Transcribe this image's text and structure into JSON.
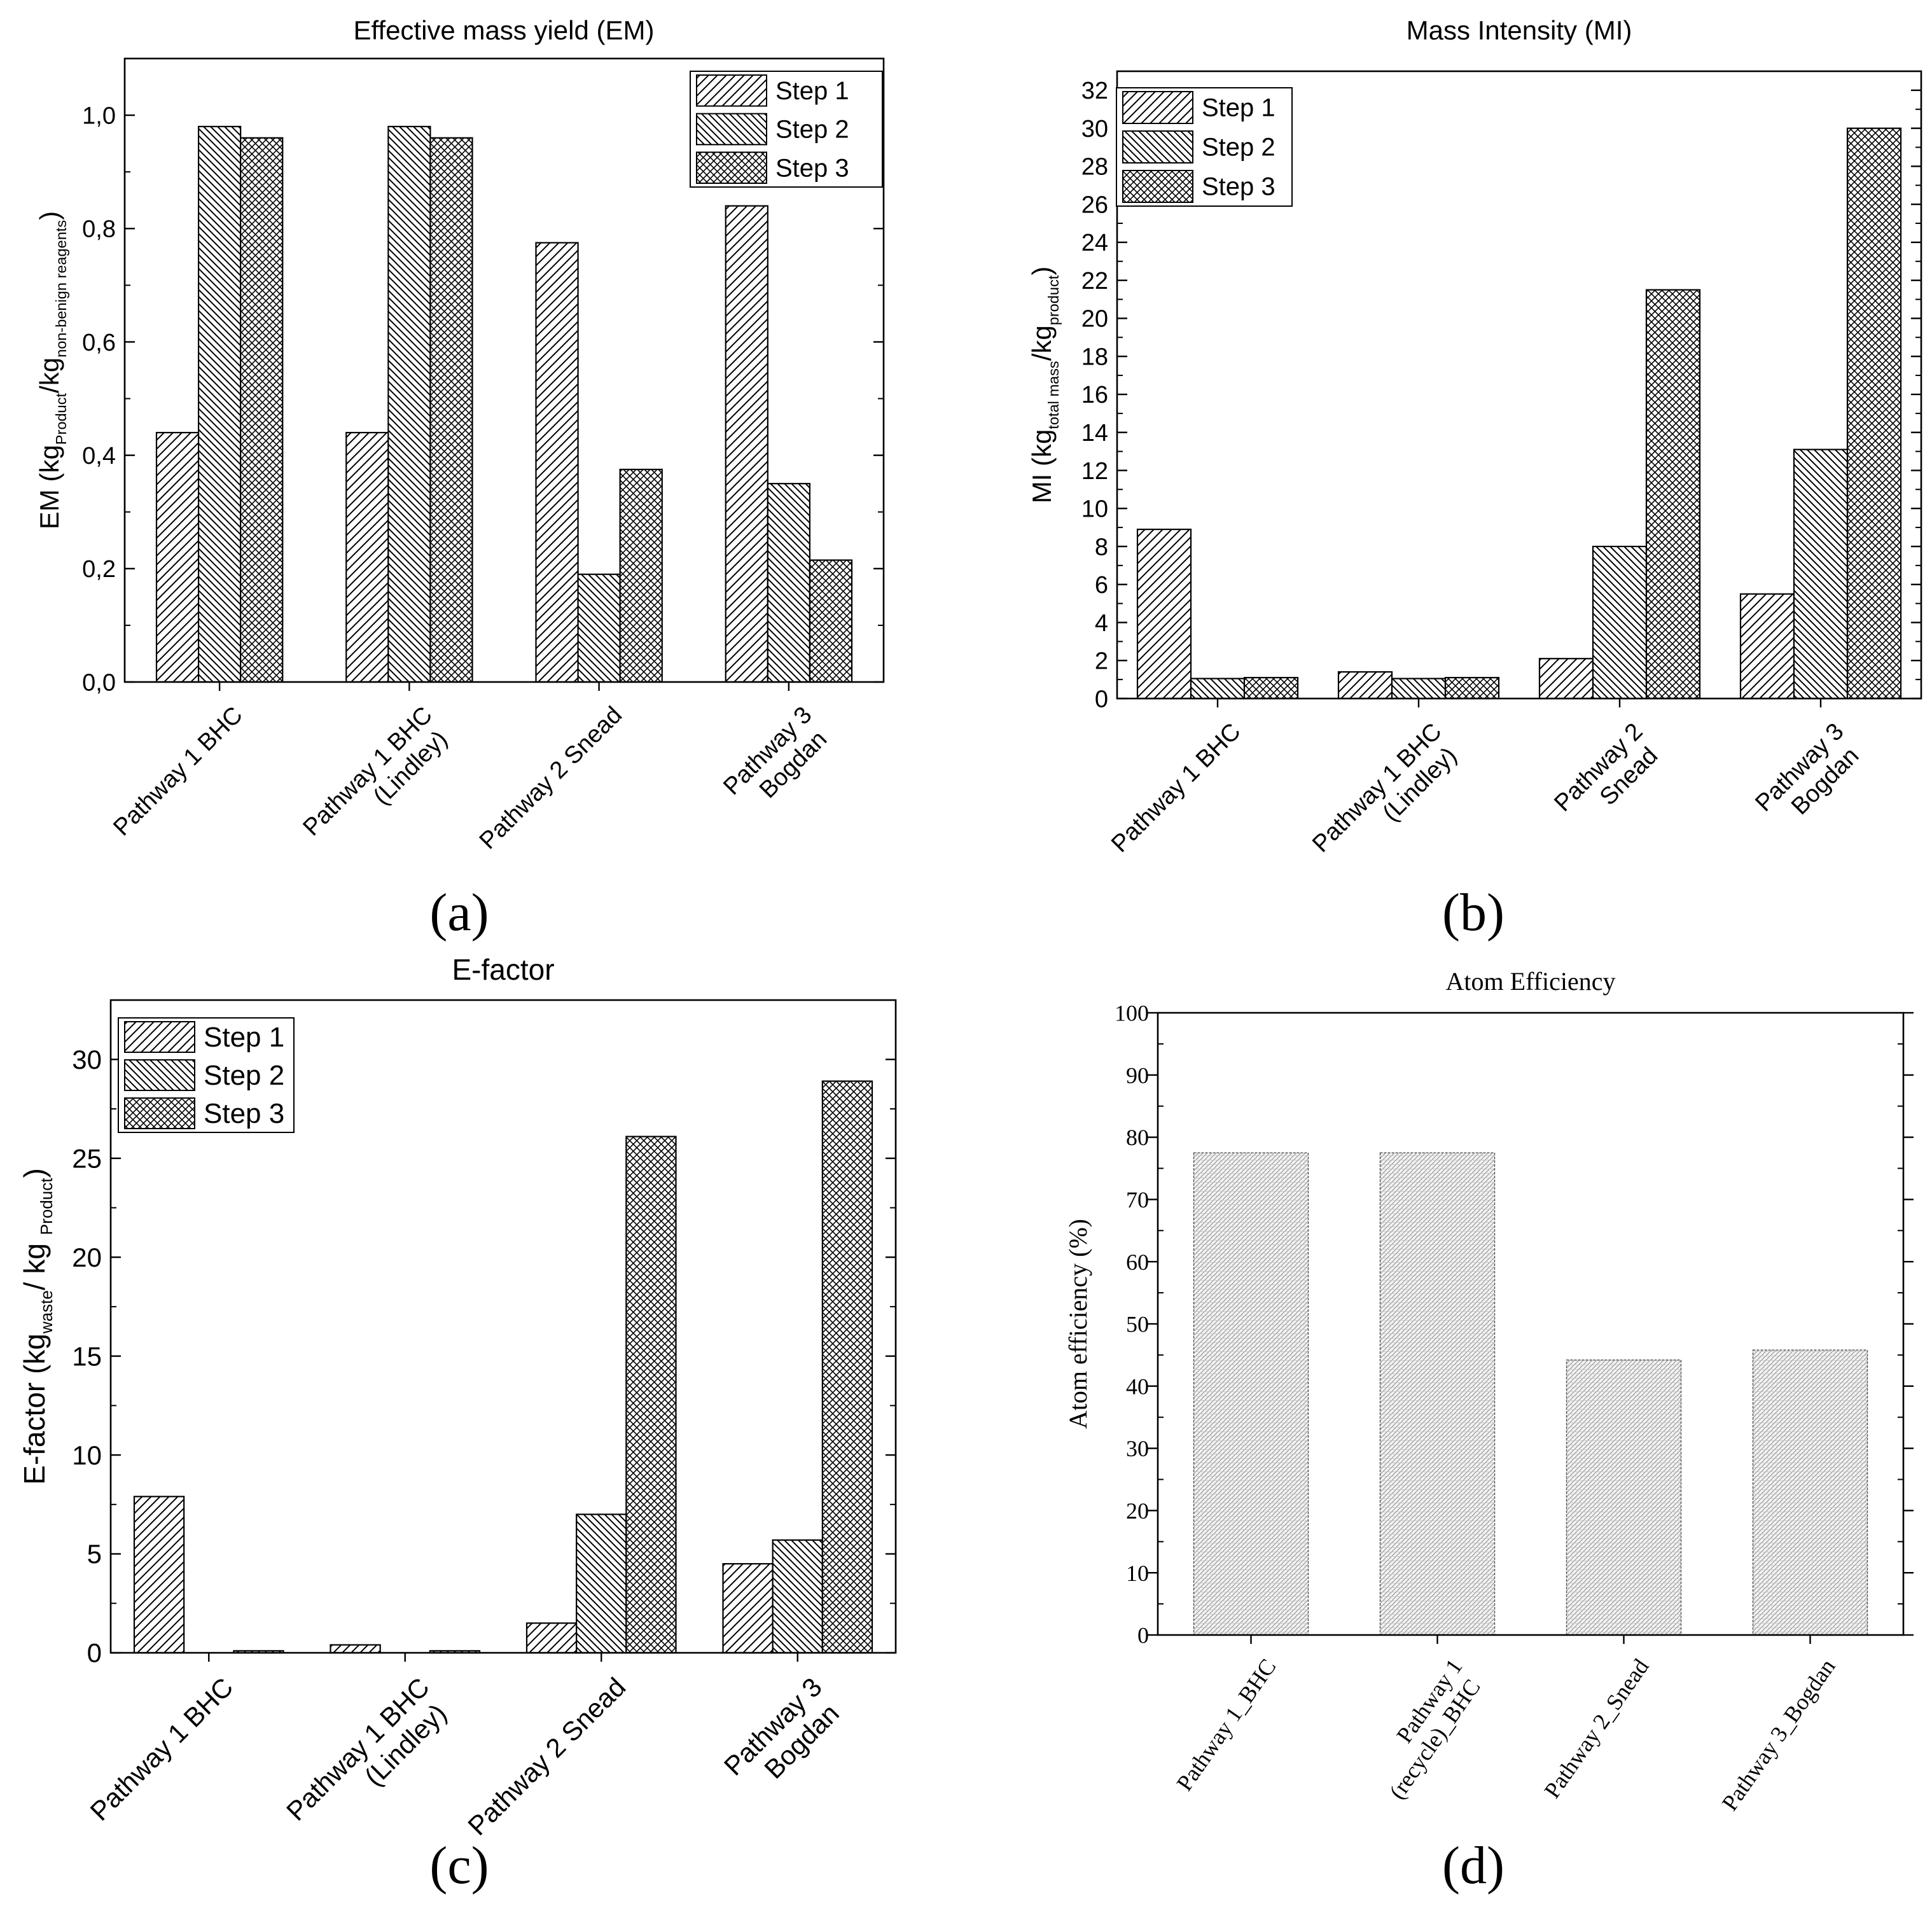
{
  "panels": {
    "a": "(a)",
    "b": "(b)",
    "c": "(c)",
    "d": "(d)"
  },
  "chart_data": [
    {
      "id": "a",
      "type": "bar",
      "title": "Effective mass yield (EM)",
      "ylabel_parts": [
        "EM (kg",
        "Product",
        "/kg",
        "non-benign reagents",
        ")"
      ],
      "ylim": [
        0,
        1.1
      ],
      "yticks": [
        0,
        0.2,
        0.4,
        0.6,
        0.8,
        1.0
      ],
      "ytick_labels": [
        "0,0",
        "0,2",
        "0,4",
        "0,6",
        "0,8",
        "1,0"
      ],
      "categories": [
        [
          "Pathway 1 BHC"
        ],
        [
          "Pathway 1 BHC",
          "(Lindley)"
        ],
        [
          "Pathway 2 Snead"
        ],
        [
          "Pathway 3",
          "Bogdan"
        ]
      ],
      "series": [
        {
          "name": "Step 1",
          "values": [
            0.44,
            0.44,
            0.775,
            0.84
          ]
        },
        {
          "name": "Step 2",
          "values": [
            0.98,
            0.98,
            0.19,
            0.35
          ]
        },
        {
          "name": "Step 3",
          "values": [
            0.96,
            0.96,
            0.375,
            0.215
          ]
        }
      ],
      "legend": "top-right"
    },
    {
      "id": "b",
      "type": "bar",
      "title": "Mass Intensity (MI)",
      "ylabel_parts": [
        "MI (kg",
        "total mass",
        "/kg",
        "product",
        ")"
      ],
      "ylim": [
        0,
        33
      ],
      "yticks": [
        0,
        2,
        4,
        6,
        8,
        10,
        12,
        14,
        16,
        18,
        20,
        22,
        24,
        26,
        28,
        30,
        32
      ],
      "ytick_labels": [
        "0",
        "2",
        "4",
        "6",
        "8",
        "10",
        "12",
        "14",
        "16",
        "18",
        "20",
        "22",
        "24",
        "26",
        "28",
        "30",
        "32"
      ],
      "categories": [
        [
          "Pathway 1 BHC"
        ],
        [
          "Pathway 1 BHC",
          "(Lindley)"
        ],
        [
          "Pathway 2",
          "Snead"
        ],
        [
          "Pathway 3",
          "Bogdan"
        ]
      ],
      "series": [
        {
          "name": "Step 1",
          "values": [
            8.9,
            1.4,
            2.1,
            5.5
          ]
        },
        {
          "name": "Step 2",
          "values": [
            1.05,
            1.05,
            8.0,
            13.1
          ]
        },
        {
          "name": "Step 3",
          "values": [
            1.1,
            1.1,
            21.5,
            30.0
          ]
        }
      ],
      "legend": "top-left"
    },
    {
      "id": "c",
      "type": "bar",
      "title": "E-factor",
      "ylabel_parts": [
        "E-factor (kg",
        "waste",
        "/ kg ",
        "Product",
        ")"
      ],
      "ylim": [
        0,
        33
      ],
      "yticks": [
        0,
        5,
        10,
        15,
        20,
        25,
        30
      ],
      "ytick_labels": [
        "0",
        "5",
        "10",
        "15",
        "20",
        "25",
        "30"
      ],
      "categories": [
        [
          "Pathway 1 BHC"
        ],
        [
          "Pathway 1 BHC",
          "(Lindley)"
        ],
        [
          "Pathway 2 Snead"
        ],
        [
          "Pathway 3",
          "Bogdan"
        ]
      ],
      "series": [
        {
          "name": "Step 1",
          "values": [
            7.9,
            0.4,
            1.5,
            4.5
          ]
        },
        {
          "name": "Step 2",
          "values": [
            0.0,
            0.0,
            7.0,
            5.7
          ]
        },
        {
          "name": "Step 3",
          "values": [
            0.1,
            0.1,
            26.1,
            28.9
          ]
        }
      ],
      "legend": "top-left"
    },
    {
      "id": "d",
      "type": "bar",
      "title": "Atom Efficiency",
      "ylabel_parts": [
        "Atom efficiency (%)"
      ],
      "ylim": [
        0,
        100
      ],
      "yticks": [
        0,
        10,
        20,
        30,
        40,
        50,
        60,
        70,
        80,
        90,
        100
      ],
      "ytick_labels": [
        "0",
        "10",
        "20",
        "30",
        "40",
        "50",
        "60",
        "70",
        "80",
        "90",
        "100"
      ],
      "categories": [
        [
          "Pathway 1_BHC"
        ],
        [
          "Pathway 1",
          "(recycle)_BHC"
        ],
        [
          "Pathway 2_Snead"
        ],
        [
          "Pathway 3_Bogdan"
        ]
      ],
      "series": [
        {
          "name": "Atom efficiency",
          "values": [
            77.5,
            77.5,
            44.2,
            45.8
          ]
        }
      ],
      "legend": "none"
    }
  ]
}
